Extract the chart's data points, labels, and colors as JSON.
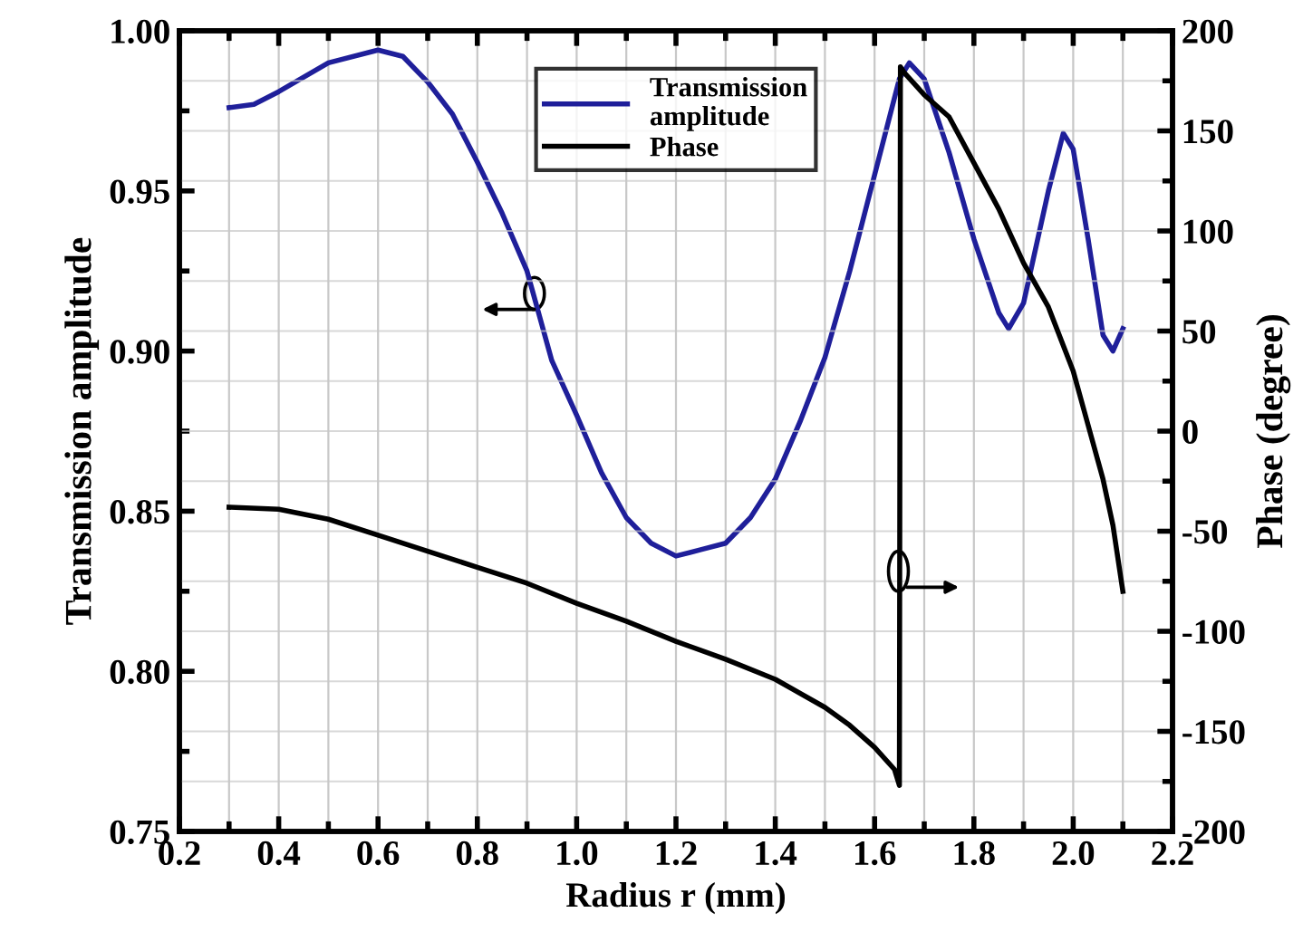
{
  "chart_data": {
    "type": "line",
    "xlabel": "Radius r (mm)",
    "ylabel": "Transmission amplitude",
    "y2label": "Phase (degree)",
    "xlim": [
      0.2,
      2.2
    ],
    "xticks": [
      {
        "value": 0.2,
        "label": "0.2"
      },
      {
        "value": 0.4,
        "label": "0.4"
      },
      {
        "value": 0.6,
        "label": "0.6"
      },
      {
        "value": 0.8,
        "label": "0.8"
      },
      {
        "value": 1.0,
        "label": "1.0"
      },
      {
        "value": 1.2,
        "label": "1.2"
      },
      {
        "value": 1.4,
        "label": "1.4"
      },
      {
        "value": 1.6,
        "label": "1.6"
      },
      {
        "value": 1.8,
        "label": "1.8"
      },
      {
        "value": 2.0,
        "label": "2.0"
      },
      {
        "value": 2.2,
        "label": "2.2"
      }
    ],
    "ylim": [
      0.75,
      1.0
    ],
    "yticks": [
      {
        "value": 0.75,
        "label": "0.75"
      },
      {
        "value": 0.8,
        "label": "0.80"
      },
      {
        "value": 0.85,
        "label": "0.85"
      },
      {
        "value": 0.9,
        "label": "0.90"
      },
      {
        "value": 0.95,
        "label": "0.95"
      },
      {
        "value": 1.0,
        "label": "1.00"
      }
    ],
    "y2lim": [
      -200,
      200
    ],
    "y2ticks": [
      -200,
      -150,
      -100,
      -50,
      0,
      50,
      100,
      150,
      200
    ],
    "grid": true,
    "legend": "top",
    "line_style": "solid",
    "marker": "none",
    "series": [
      {
        "name": "Transmission amplitude",
        "color": "#1f1f9a",
        "x": [
          0.3,
          0.35,
          0.4,
          0.5,
          0.6,
          0.65,
          0.7,
          0.75,
          0.8,
          0.85,
          0.9,
          0.95,
          1.0,
          1.05,
          1.1,
          1.15,
          1.2,
          1.25,
          1.3,
          1.35,
          1.4,
          1.45,
          1.5,
          1.55,
          1.6,
          1.65,
          1.67,
          1.7,
          1.75,
          1.8,
          1.85,
          1.87,
          1.9,
          1.95,
          1.98,
          2.0,
          2.03,
          2.06,
          2.08,
          2.1
        ],
        "values": [
          0.976,
          0.977,
          0.981,
          0.99,
          0.994,
          0.992,
          0.984,
          0.974,
          0.959,
          0.943,
          0.925,
          0.897,
          0.88,
          0.862,
          0.848,
          0.84,
          0.836,
          0.838,
          0.84,
          0.848,
          0.86,
          0.878,
          0.898,
          0.925,
          0.955,
          0.985,
          0.99,
          0.985,
          0.962,
          0.935,
          0.912,
          0.907,
          0.915,
          0.95,
          0.968,
          0.963,
          0.935,
          0.905,
          0.9,
          0.907
        ]
      },
      {
        "name": "Phase",
        "color": "#000000",
        "axis": "y2",
        "x": [
          0.3,
          0.4,
          0.5,
          0.6,
          0.7,
          0.8,
          0.9,
          1.0,
          1.1,
          1.2,
          1.3,
          1.4,
          1.5,
          1.55,
          1.6,
          1.64,
          1.65,
          1.652,
          1.66,
          1.7,
          1.75,
          1.8,
          1.85,
          1.9,
          1.95,
          2.0,
          2.03,
          2.06,
          2.08,
          2.1
        ],
        "values": [
          -38,
          -39,
          -44,
          -52,
          -60,
          -68,
          -76,
          -86,
          -95,
          -105,
          -114,
          -124,
          -138,
          -147,
          -158,
          -169,
          -177,
          182,
          179,
          168,
          157,
          134,
          111,
          84,
          62,
          30,
          3,
          -24,
          -47,
          -80
        ]
      }
    ]
  }
}
